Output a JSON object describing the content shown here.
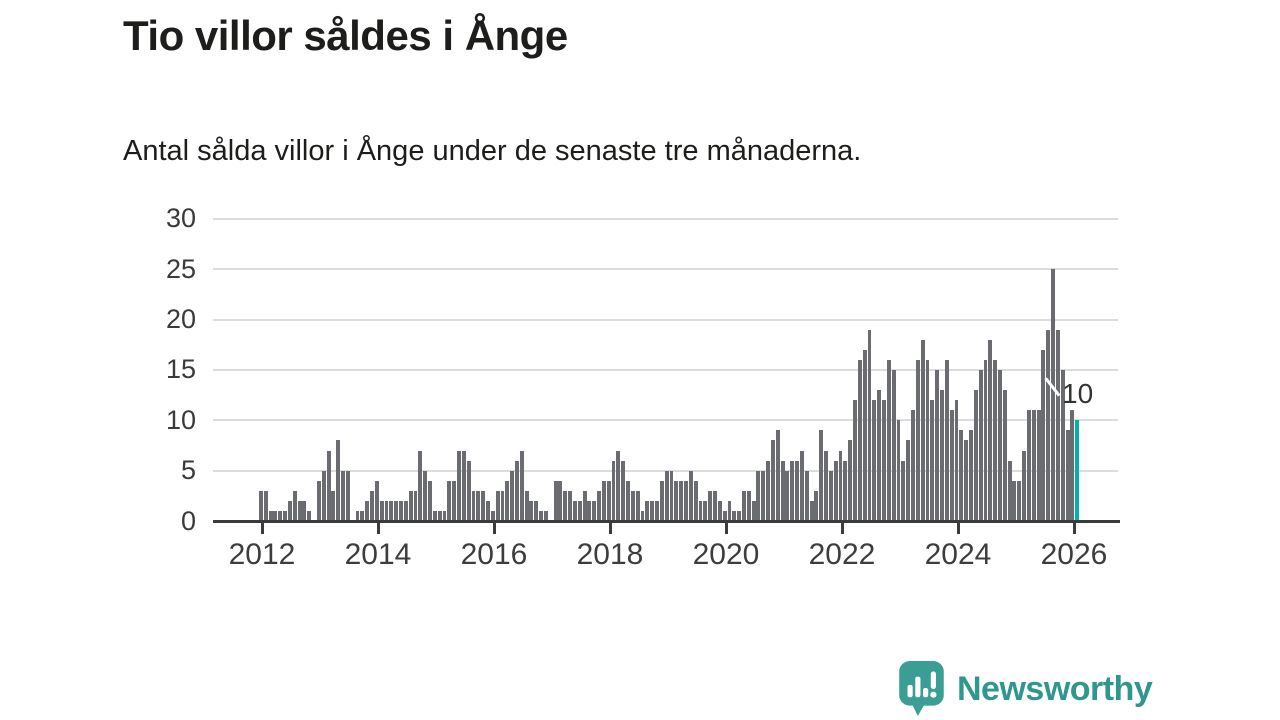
{
  "header": {
    "title": "Tio villor såldes i Ånge",
    "subtitle": "Antal sålda villor i Ånge under de senaste tre månaderna."
  },
  "chart_data": {
    "type": "bar",
    "title": "Tio villor såldes i Ånge",
    "subtitle": "Antal sålda villor i Ånge under de senaste tre månaderna.",
    "x_start": "2012-01",
    "x_interval": "monthly",
    "xlabel": "",
    "ylabel": "",
    "ylim": [
      0,
      30
    ],
    "y_ticks": [
      0,
      5,
      10,
      15,
      20,
      25,
      30
    ],
    "x_ticks": [
      2012,
      2014,
      2016,
      2018,
      2020,
      2022,
      2024,
      2026
    ],
    "grid": true,
    "legend": "none",
    "bar_color": "#6b6b72",
    "highlight_color": "#00b1ac",
    "annotation": {
      "text": "10",
      "target": "last-bar"
    },
    "values": [
      3,
      3,
      1,
      1,
      1,
      1,
      2,
      3,
      2,
      2,
      1,
      0,
      4,
      5,
      7,
      3,
      8,
      5,
      5,
      0,
      1,
      1,
      2,
      3,
      4,
      2,
      2,
      2,
      2,
      2,
      2,
      3,
      3,
      7,
      5,
      4,
      1,
      1,
      1,
      4,
      4,
      7,
      7,
      6,
      3,
      3,
      3,
      2,
      1,
      3,
      3,
      4,
      5,
      6,
      7,
      3,
      2,
      2,
      1,
      1,
      0,
      4,
      4,
      3,
      3,
      2,
      2,
      3,
      2,
      2,
      3,
      4,
      4,
      6,
      7,
      6,
      4,
      3,
      3,
      1,
      2,
      2,
      2,
      4,
      5,
      5,
      4,
      4,
      4,
      5,
      4,
      2,
      2,
      3,
      3,
      2,
      1,
      2,
      1,
      1,
      3,
      3,
      2,
      5,
      5,
      6,
      8,
      9,
      6,
      5,
      6,
      6,
      7,
      5,
      2,
      3,
      9,
      7,
      5,
      6,
      7,
      6,
      8,
      12,
      16,
      17,
      19,
      12,
      13,
      12,
      16,
      15,
      10,
      6,
      8,
      11,
      16,
      18,
      16,
      12,
      15,
      13,
      16,
      11,
      12,
      9,
      8,
      9,
      13,
      15,
      16,
      18,
      16,
      15,
      13,
      6,
      4,
      4,
      7,
      11,
      11,
      11,
      17,
      19,
      25,
      19,
      15,
      9,
      11,
      10
    ],
    "highlight_last_n": 1,
    "last_value": 10
  },
  "branding": {
    "logo_text": "Newsworthy",
    "logo_color": "#2f978e",
    "logo_icon": "speech-bubble-bar-chart-exclamation",
    "logo_icon_color": "#3a9e95"
  }
}
